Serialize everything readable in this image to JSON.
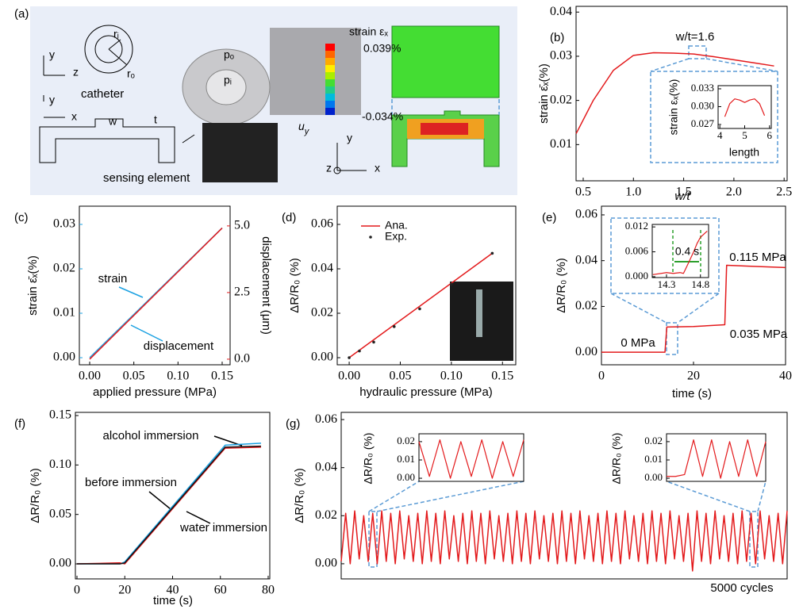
{
  "schematic": {
    "label": "(a)",
    "labels": [
      "y",
      "z",
      "catheter",
      "rᵢ",
      "rₒ",
      "y",
      "x",
      "w",
      "t",
      "sensing element",
      "pₒ",
      "pᵢ",
      [
        "u",
        "y"
      ],
      "strain εₓ",
      "0.039%",
      "-0.034%",
      "y",
      "z",
      "x"
    ]
  },
  "chart_data": [
    {
      "type": "line",
      "label": "(b)",
      "xlabel": "w/t",
      "ylabel": "strain ε̄ₓ(%)",
      "xlim": [
        0.429,
        2.53
      ],
      "xticks": [
        0.5,
        {
          "value": 1.0,
          "label": "1.0"
        },
        1.5,
        {
          "value": 2.0,
          "label": "2.0"
        },
        2.5
      ],
      "ylim": [
        0.0018,
        0.0413
      ],
      "yticks": [
        0.01,
        0.02,
        0.03,
        0.04
      ],
      "series": [
        {
          "color": "#e31a1c",
          "x": [
            0.43,
            0.6,
            0.8,
            1.0,
            1.2,
            1.4,
            1.6,
            1.8,
            2.0,
            2.2,
            2.4
          ],
          "values": [
            0.0125,
            0.02,
            0.0268,
            0.0302,
            0.0308,
            0.0307,
            0.0305,
            0.0299,
            0.0292,
            0.0285,
            0.0278
          ]
        }
      ],
      "annotations": [
        {
          "text": "w/t=1.6",
          "color": "#000000"
        }
      ],
      "inset": {
        "type": "line",
        "xlabel": "length",
        "ylabel": "strain εₓ(%)",
        "xlim": [
          3.93,
          6.07
        ],
        "xticks": [
          4,
          5,
          6
        ],
        "ylim": [
          0.02633,
          0.03353
        ],
        "yticks": [
          0.027,
          {
            "value": 0.03,
            "label": "0.030"
          },
          0.033
        ],
        "series": [
          {
            "color": "#e31a1c",
            "x": [
              4.2,
              4.4,
              4.6,
              4.8,
              5.0,
              5.2,
              5.4,
              5.6,
              5.8
            ],
            "values": [
              0.0283,
              0.0305,
              0.0313,
              0.0311,
              0.0307,
              0.0311,
              0.0313,
              0.0305,
              0.0285
            ]
          }
        ]
      }
    },
    {
      "type": "line",
      "label": "(c)",
      "xlabel": "applied pressure (MPa)",
      "ylabel": "strain ε̄ₓ(%)",
      "y2label": "displacement (μm)",
      "ytick_color": "#1ba1e2",
      "y2tick_color": "#e31a1c",
      "xlim": [
        -0.0117,
        0.159
      ],
      "xticks": [
        {
          "value": 0,
          "label": "0.00"
        },
        0.05,
        {
          "value": 0.1,
          "label": "0.10"
        },
        0.15
      ],
      "ylim": [
        -0.0016,
        0.0341
      ],
      "yticks": [
        {
          "value": 0,
          "label": "0.00"
        },
        0.01,
        0.02,
        0.03
      ],
      "y2lim": [
        -0.21,
        5.74
      ],
      "y2ticks": [
        {
          "value": 0,
          "label": "0.0"
        },
        2.5,
        {
          "value": 5,
          "label": "5.0"
        }
      ],
      "series": [
        {
          "name": "strain",
          "color": "#1ba1e2",
          "x": [
            0,
            0.15
          ],
          "values": [
            0,
            0.0292
          ]
        },
        {
          "name": "displacement",
          "color": "#e31a1c",
          "axis": "y2",
          "x": [
            0,
            0.15
          ],
          "values": [
            0,
            4.92
          ]
        }
      ],
      "annotations": [
        {
          "text": "strain",
          "color": "#1ba1e2"
        },
        {
          "text": "displacement",
          "color": "#e31a1c"
        }
      ]
    },
    {
      "type": "line",
      "label": "(d)",
      "xlabel": "hydraulic pressure (MPa)",
      "ylabel": "ΔR/R₀ (%)",
      "xlim": [
        -0.0117,
        0.163
      ],
      "xticks": [
        {
          "value": 0,
          "label": "0.00"
        },
        0.05,
        {
          "value": 0.1,
          "label": "0.10"
        },
        0.15
      ],
      "ylim": [
        -0.0032,
        0.0682
      ],
      "yticks": [
        {
          "value": 0,
          "label": "0.00"
        },
        0.02,
        0.04,
        0.06
      ],
      "legend": "upper left",
      "series": [
        {
          "name": "Ana.",
          "color": "#e31a1c",
          "x": [
            0,
            0.14
          ],
          "values": [
            0,
            0.047
          ]
        },
        {
          "name": "Exp.",
          "type": "scatter",
          "color": "#222222",
          "x": [
            0,
            0.01,
            0.024,
            0.044,
            0.069,
            0.1,
            0.14
          ],
          "values": [
            0,
            0.003,
            0.007,
            0.014,
            0.022,
            0.033,
            0.047
          ]
        }
      ]
    },
    {
      "type": "line",
      "label": "(e)",
      "xlabel": "time (s)",
      "ylabel": "ΔR/R₀ (%)",
      "xlim": [
        0,
        40
      ],
      "xticks": [
        0,
        20,
        40
      ],
      "ylim": [
        -0.0055,
        0.0638
      ],
      "yticks": [
        {
          "value": 0,
          "label": "0.00"
        },
        0.02,
        0.04,
        0.06
      ],
      "series": [
        {
          "color": "#e31a1c",
          "x": [
            0,
            13.8,
            14.2,
            20,
            26.8,
            27.2,
            33,
            40
          ],
          "values": [
            0,
            0,
            0.011,
            0.0112,
            0.012,
            0.038,
            0.0375,
            0.037
          ]
        }
      ],
      "annotations": [
        {
          "text": "0 MPa",
          "color": "#000000"
        },
        {
          "text": "0.035 MPa",
          "color": "#000000"
        },
        {
          "text": "0.115 MPa",
          "color": "#000000"
        }
      ],
      "inset": {
        "type": "line",
        "xlim": [
          14.09,
          14.92
        ],
        "xticks": [
          14.3,
          14.8
        ],
        "ylim": [
          -0.0002,
          0.0126
        ],
        "yticks": [
          {
            "value": 0,
            "label": "0.000"
          },
          0.006,
          0.012
        ],
        "series": [
          {
            "color": "#e31a1c",
            "x": [
              14.1,
              14.3,
              14.4,
              14.5,
              14.55,
              14.6,
              14.7,
              14.75,
              14.8,
              14.9
            ],
            "values": [
              0.0005,
              0.001,
              0.0008,
              0.001,
              0.0008,
              0.0025,
              0.006,
              0.008,
              0.0095,
              0.011
            ]
          }
        ],
        "annotations": [
          {
            "text": "0.4 s",
            "color": "#000000"
          }
        ]
      }
    },
    {
      "type": "line",
      "label": "(f)",
      "xlabel": "time (s)",
      "ylabel": "ΔR/R₀ (%)",
      "xlim": [
        -0.67,
        80.67
      ],
      "xticks": [
        0,
        20,
        40,
        60,
        80
      ],
      "ylim": [
        -0.0152,
        0.1532
      ],
      "yticks": [
        {
          "value": 0,
          "label": "0.00"
        },
        0.05,
        {
          "value": 0.1,
          "label": "0.10"
        },
        0.15
      ],
      "series": [
        {
          "name": "alcohol immersion",
          "color": "#1ba1e2",
          "x": [
            0,
            18,
            20,
            62,
            77
          ],
          "values": [
            0,
            0,
            0.002,
            0.12,
            0.122
          ]
        },
        {
          "name": "water immersion",
          "color": "#e31a1c",
          "x": [
            0,
            18,
            20,
            62,
            77
          ],
          "values": [
            0,
            0.001,
            0,
            0.117,
            0.118
          ]
        },
        {
          "name": "before immersion",
          "color": "#111111",
          "x": [
            0,
            18,
            20,
            62,
            77
          ],
          "values": [
            0,
            0,
            0.001,
            0.118,
            0.119
          ]
        }
      ],
      "annotations": [
        {
          "text": "alcohol immersion",
          "color": "#1ba1e2"
        },
        {
          "text": "before immersion",
          "color": "#000000"
        },
        {
          "text": "water immersion",
          "color": "#e31a1c"
        }
      ]
    },
    {
      "type": "line",
      "label": "(g)",
      "ylabel": "ΔR/R₀ (%)",
      "ylim": [
        -0.0063,
        0.063
      ],
      "yticks": [
        {
          "value": 0,
          "label": "0.00"
        },
        0.02,
        0.04,
        0.06
      ],
      "series": [
        {
          "color": "#e31a1c",
          "values": [
            0.001,
            0.021,
            0,
            0.022,
            0.002,
            0.02,
            0.001,
            0.021,
            0,
            0.022,
            0.001,
            0.021,
            0,
            0.022,
            0.002,
            0.02,
            0.001,
            0.021,
            0,
            0.022,
            0.001,
            0.021,
            0,
            0.022,
            0.002,
            0.02,
            0.001,
            0.021,
            0,
            0.022,
            0.001,
            0.021,
            0,
            0.022,
            0.002,
            0.02,
            0.001,
            0.021,
            0,
            0.022,
            0.001,
            0.021,
            0,
            0.022,
            0.002,
            0.02,
            0.001,
            0.021,
            0,
            0.022,
            0.001,
            0.021,
            0,
            0.022,
            0.002,
            0.02,
            0.001,
            0.021,
            0,
            0.022,
            0.001,
            0.021,
            0,
            0.022,
            0.002,
            0.02,
            0.001,
            0.021,
            0,
            0.022,
            0.001,
            0.021,
            0,
            0.022,
            0.002,
            0.02,
            0.001,
            0.021,
            -0.003,
            0.022,
            0.001,
            0.021,
            0,
            0.022,
            0.002,
            0.02,
            0.001,
            0.021,
            0,
            0.022,
            0.001,
            0.021,
            0,
            0.022,
            0.002,
            0.02,
            0.001,
            0.021,
            0,
            0.022
          ]
        }
      ],
      "annotations": [
        {
          "text": "5000 cycles",
          "color": "#000000"
        }
      ],
      "insets": [
        {
          "type": "line",
          "ylabel": "ΔR/R₀ (%)",
          "ylim": [
            -0.0017,
            0.0243
          ],
          "yticks": [
            {
              "value": 0,
              "label": "0.00"
            },
            0.01,
            0.02
          ],
          "series": [
            {
              "color": "#e31a1c",
              "values": [
                0.02,
                0.001,
                0.021,
                0,
                0.02,
                0.001,
                0.021,
                0,
                0.02,
                0.001,
                0.021
              ]
            }
          ]
        },
        {
          "type": "line",
          "ylabel": "ΔR/R₀ (%)",
          "ylim": [
            -0.0017,
            0.0243
          ],
          "yticks": [
            {
              "value": 0,
              "label": "0.00"
            },
            0.01,
            0.02
          ],
          "series": [
            {
              "color": "#e31a1c",
              "values": [
                0.001,
                0.001,
                0.002,
                0.021,
                0.001,
                0.021,
                0,
                0.02,
                0.001,
                0.021,
                0.001,
                0.02
              ]
            }
          ]
        }
      ]
    }
  ]
}
